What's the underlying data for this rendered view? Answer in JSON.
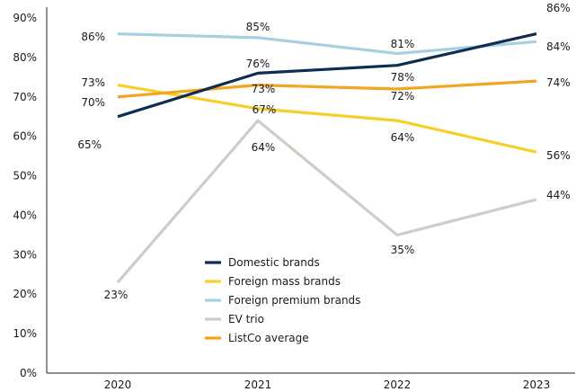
{
  "chart_data": {
    "type": "line",
    "categories": [
      "2020",
      "2021",
      "2022",
      "2023"
    ],
    "ylim": [
      0,
      90
    ],
    "yticks": [
      "0%",
      "10%",
      "20%",
      "30%",
      "40%",
      "50%",
      "60%",
      "70%",
      "80%",
      "90%"
    ],
    "grid": false,
    "legend_position": "center-left",
    "series": [
      {
        "name": "Domestic brands",
        "color": "#0d2d52",
        "values": [
          65,
          76,
          78,
          86
        ],
        "labels": [
          "65%",
          "76%",
          "78%",
          "86%"
        ]
      },
      {
        "name": "Foreign mass brands",
        "color": "#f6cf2b",
        "values": [
          73,
          67,
          64,
          56
        ],
        "labels": [
          "73%",
          "67%",
          "64%",
          "56%"
        ]
      },
      {
        "name": "Foreign premium brands",
        "color": "#a7cfe0",
        "values": [
          86,
          85,
          81,
          84
        ],
        "labels": [
          "86%",
          "85%",
          "81%",
          "84%"
        ]
      },
      {
        "name": "EV trio",
        "color": "#d3ccc6",
        "values": [
          23,
          64,
          35,
          44
        ],
        "labels": [
          "23%",
          "64%",
          "35%",
          "44%"
        ]
      },
      {
        "name": "ListCo average",
        "color": "#f2a51e",
        "values": [
          70,
          73,
          72,
          74
        ],
        "labels": [
          "70%",
          "73%",
          "72%",
          "74%"
        ]
      }
    ]
  }
}
